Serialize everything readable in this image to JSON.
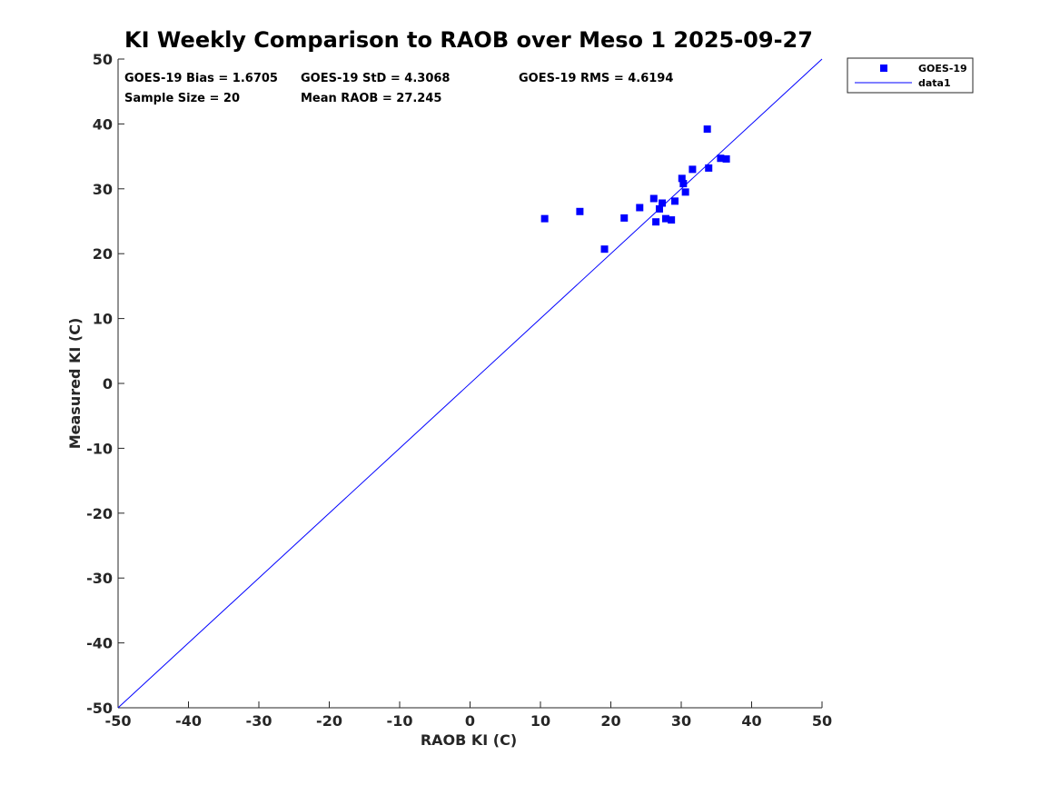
{
  "chart_data": {
    "type": "scatter",
    "title": "KI Weekly Comparison to RAOB over Meso 1 2025-09-27",
    "xlabel": "RAOB KI (C)",
    "ylabel": "Measured KI (C)",
    "xlim": [
      -50,
      50
    ],
    "ylim": [
      -50,
      50
    ],
    "xticks": [
      "-50",
      "-40",
      "-30",
      "-20",
      "-10",
      "0",
      "10",
      "20",
      "30",
      "40",
      "50"
    ],
    "yticks": [
      "-50",
      "-40",
      "-30",
      "-20",
      "-10",
      "0",
      "10",
      "20",
      "30",
      "40",
      "50"
    ],
    "grid": false,
    "legend_position": "outside-top-right",
    "stats": {
      "bias": "GOES-19 Bias = 1.6705",
      "std": "GOES-19 StD = 4.3068",
      "rms": "GOES-19 RMS = 4.6194",
      "sample_size": "Sample Size = 20",
      "mean_raob": "Mean RAOB = 27.245"
    },
    "series": [
      {
        "name": "GOES-19",
        "kind": "scatter",
        "marker": "square",
        "color": "#0000ff",
        "points": [
          [
            10.6,
            25.4
          ],
          [
            15.6,
            26.5
          ],
          [
            19.1,
            20.7
          ],
          [
            21.9,
            25.5
          ],
          [
            24.1,
            27.1
          ],
          [
            26.1,
            28.5
          ],
          [
            26.4,
            24.9
          ],
          [
            26.9,
            26.9
          ],
          [
            27.3,
            27.8
          ],
          [
            27.8,
            25.4
          ],
          [
            28.6,
            25.2
          ],
          [
            29.1,
            28.1
          ],
          [
            30.1,
            31.6
          ],
          [
            30.3,
            30.8
          ],
          [
            30.6,
            29.5
          ],
          [
            31.6,
            33.0
          ],
          [
            33.7,
            39.2
          ],
          [
            33.9,
            33.2
          ],
          [
            35.6,
            34.7
          ],
          [
            36.4,
            34.6
          ]
        ]
      },
      {
        "name": "data1",
        "kind": "line",
        "color": "#0000ff",
        "points": [
          [
            -50,
            -50
          ],
          [
            50,
            50
          ]
        ]
      }
    ]
  }
}
